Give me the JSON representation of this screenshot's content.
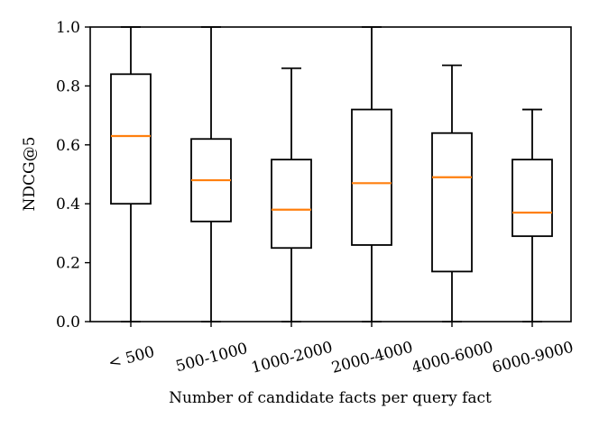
{
  "chart_data": {
    "type": "box",
    "title": "",
    "xlabel": "Number of candidate facts per query fact",
    "ylabel": "NDCG@5",
    "ylim": [
      0.0,
      1.0
    ],
    "yticks": [
      "0.0",
      "0.2",
      "0.4",
      "0.6",
      "0.8",
      "1.0"
    ],
    "categories": [
      "< 500",
      "500-1000",
      "1000-2000",
      "2000-4000",
      "4000-6000",
      "6000-9000"
    ],
    "boxes": [
      {
        "whisker_low": 0.0,
        "q1": 0.4,
        "median": 0.63,
        "q3": 0.84,
        "whisker_high": 1.0
      },
      {
        "whisker_low": 0.0,
        "q1": 0.34,
        "median": 0.48,
        "q3": 0.62,
        "whisker_high": 1.0
      },
      {
        "whisker_low": 0.0,
        "q1": 0.25,
        "median": 0.38,
        "q3": 0.55,
        "whisker_high": 0.86
      },
      {
        "whisker_low": 0.0,
        "q1": 0.26,
        "median": 0.47,
        "q3": 0.72,
        "whisker_high": 1.0
      },
      {
        "whisker_low": 0.0,
        "q1": 0.17,
        "median": 0.49,
        "q3": 0.64,
        "whisker_high": 0.87
      },
      {
        "whisker_low": 0.0,
        "q1": 0.29,
        "median": 0.37,
        "q3": 0.55,
        "whisker_high": 0.72
      }
    ],
    "colors": {
      "box": "#000000",
      "median": "#ff7f0e"
    },
    "grid": false,
    "legend": "none"
  }
}
